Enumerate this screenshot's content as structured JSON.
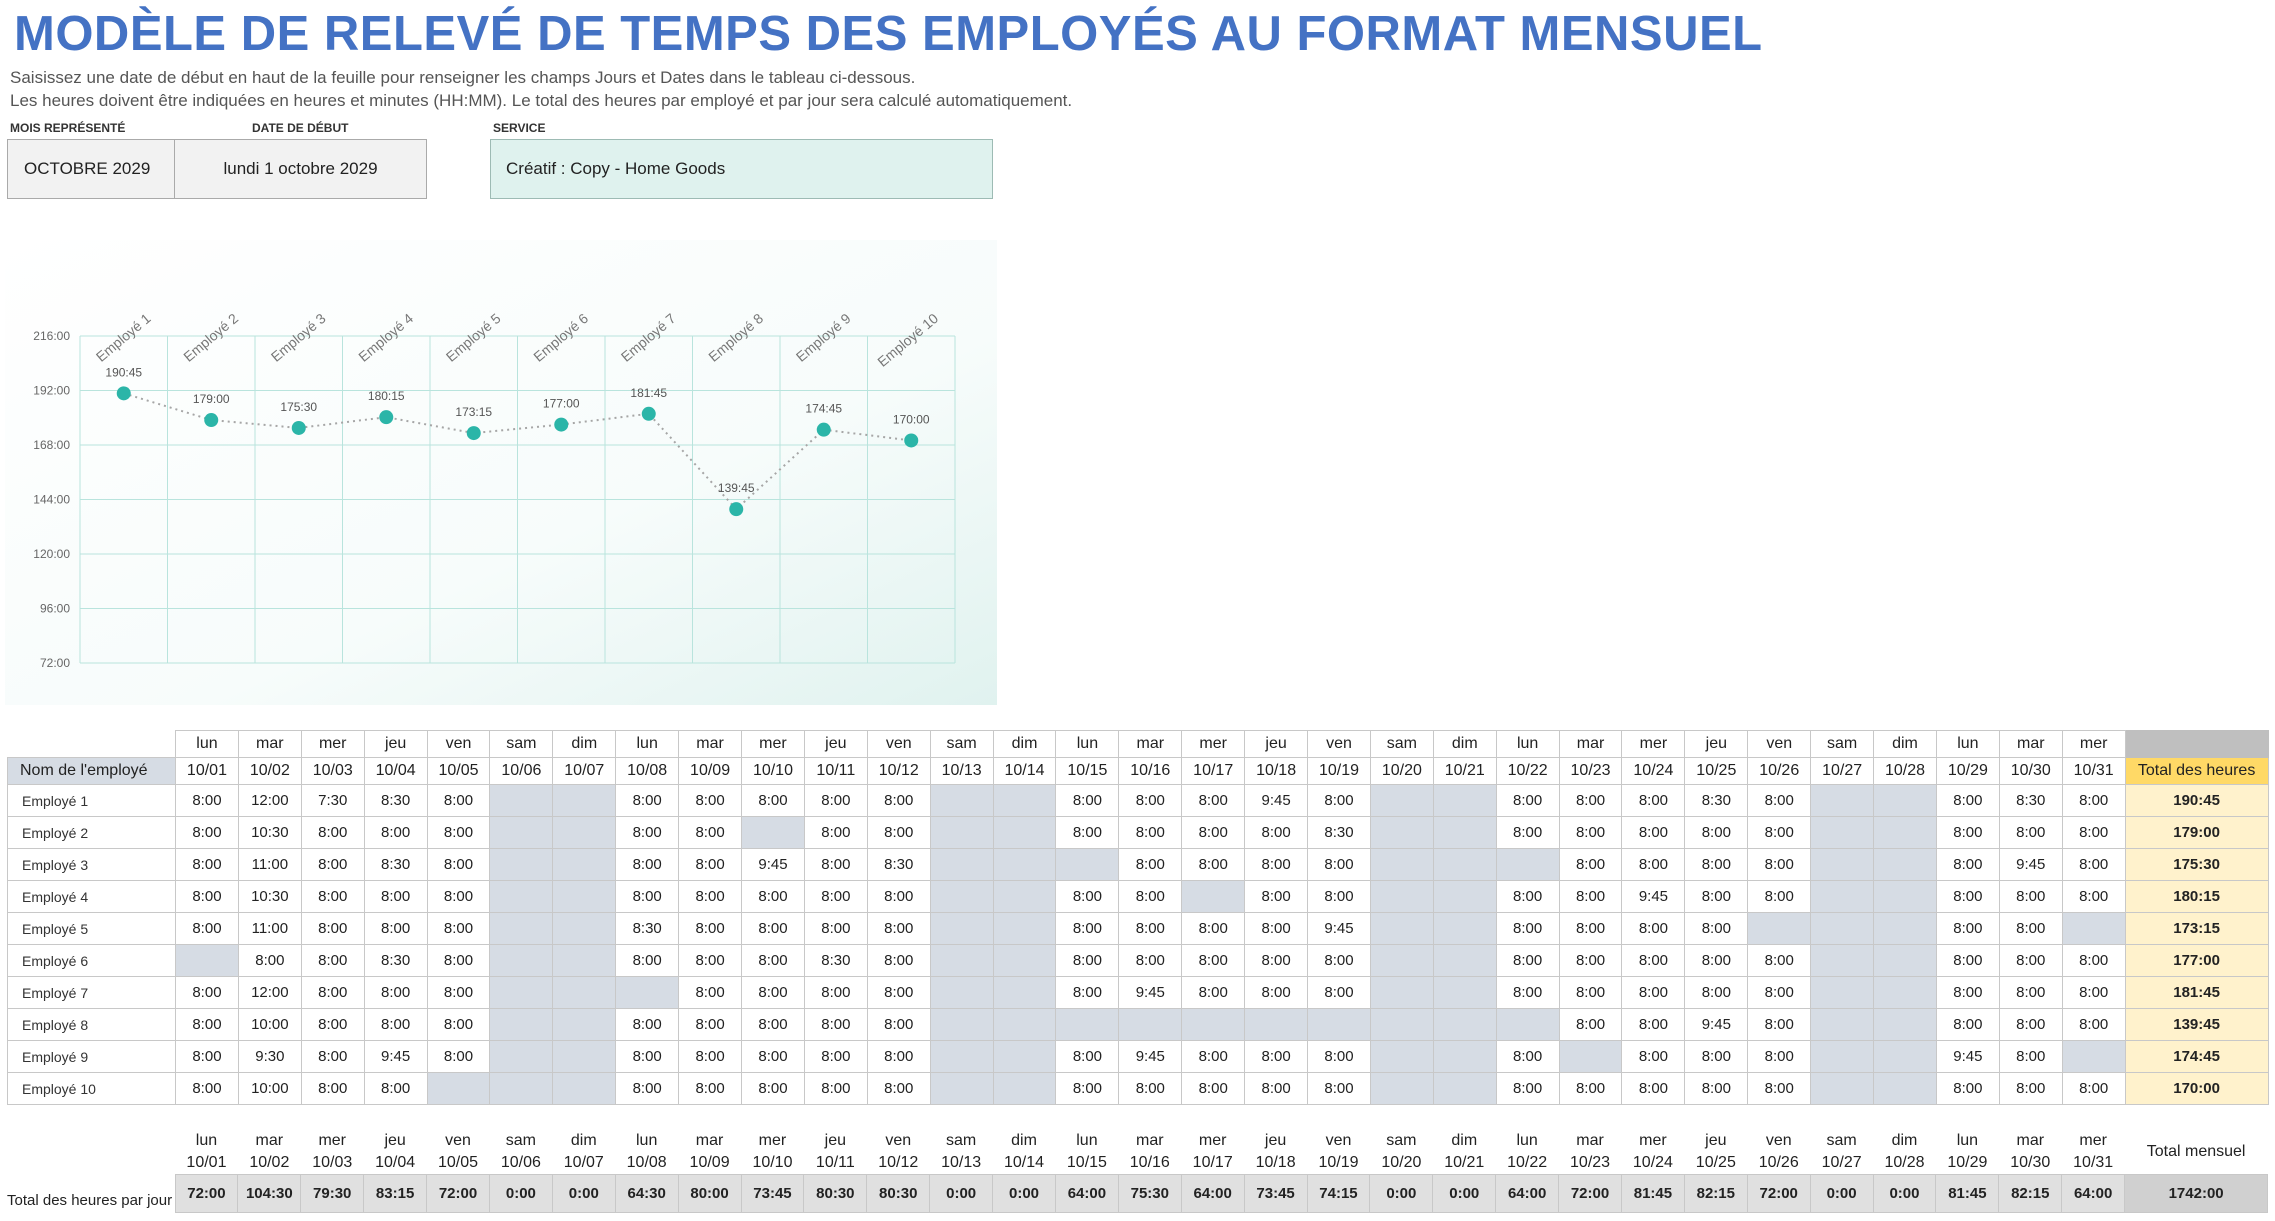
{
  "title": "MODÈLE DE RELEVÉ DE TEMPS DES EMPLOYÉS AU FORMAT MENSUEL",
  "instructions": [
    "Saisissez une date de début en haut de la feuille pour renseigner les champs Jours et Dates dans le tableau ci-dessous.",
    "Les heures doivent être indiquées en heures et minutes (HH:MM).  Le total des heures par employé et par jour sera calculé automatiquement."
  ],
  "fields": {
    "month_label": "MOIS REPRÉSENTÉ",
    "month_value": "OCTOBRE 2029",
    "start_label": "DATE DE DÉBUT",
    "start_value": "lundi 1 octobre 2029",
    "service_label": "SERVICE",
    "service_value": "Créatif : Copy - Home Goods"
  },
  "colors": {
    "accent": "#4472c4",
    "marker": "#2bb5a8",
    "weekend": "#d6dce4",
    "total": "#fff2cc",
    "total_header": "#ffd966",
    "service_box": "#dff2ee"
  },
  "chart_data": {
    "type": "line",
    "categories": [
      "Employé 1",
      "Employé 2",
      "Employé 3",
      "Employé 4",
      "Employé 5",
      "Employé 6",
      "Employé 7",
      "Employé 8",
      "Employé 9",
      "Employé 10"
    ],
    "values": [
      190.75,
      179.0,
      175.5,
      180.25,
      173.25,
      177.0,
      181.75,
      139.75,
      174.75,
      170.0
    ],
    "data_labels": [
      "190:45",
      "179:00",
      "175:30",
      "180:15",
      "173:15",
      "177:00",
      "181:45",
      "139:45",
      "174:45",
      "170:00"
    ],
    "y_ticks": [
      "216:00",
      "192:00",
      "168:00",
      "144:00",
      "120:00",
      "96:00",
      "72:00"
    ],
    "ylim": [
      72,
      216
    ],
    "grid": true,
    "x_labels_position": "top"
  },
  "table": {
    "name_header": "Nom de l'employé",
    "total_header": "Total des heures",
    "days": [
      "lun",
      "mar",
      "mer",
      "jeu",
      "ven",
      "sam",
      "dim",
      "lun",
      "mar",
      "mer",
      "jeu",
      "ven",
      "sam",
      "dim",
      "lun",
      "mar",
      "mer",
      "jeu",
      "ven",
      "sam",
      "dim",
      "lun",
      "mar",
      "mer",
      "jeu",
      "ven",
      "sam",
      "dim",
      "lun",
      "mar",
      "mer"
    ],
    "dates": [
      "10/01",
      "10/02",
      "10/03",
      "10/04",
      "10/05",
      "10/06",
      "10/07",
      "10/08",
      "10/09",
      "10/10",
      "10/11",
      "10/12",
      "10/13",
      "10/14",
      "10/15",
      "10/16",
      "10/17",
      "10/18",
      "10/19",
      "10/20",
      "10/21",
      "10/22",
      "10/23",
      "10/24",
      "10/25",
      "10/26",
      "10/27",
      "10/28",
      "10/29",
      "10/30",
      "10/31"
    ],
    "rows": [
      {
        "name": "Employé 1",
        "hours": [
          "8:00",
          "12:00",
          "7:30",
          "8:30",
          "8:00",
          "",
          "",
          "8:00",
          "8:00",
          "8:00",
          "8:00",
          "8:00",
          "",
          "",
          "8:00",
          "8:00",
          "8:00",
          "9:45",
          "8:00",
          "",
          "",
          "8:00",
          "8:00",
          "8:00",
          "8:30",
          "8:00",
          "",
          "",
          "8:00",
          "8:30",
          "8:00"
        ],
        "total": "190:45"
      },
      {
        "name": "Employé 2",
        "hours": [
          "8:00",
          "10:30",
          "8:00",
          "8:00",
          "8:00",
          "",
          "",
          "8:00",
          "8:00",
          "",
          "8:00",
          "8:00",
          "",
          "",
          "8:00",
          "8:00",
          "8:00",
          "8:00",
          "8:30",
          "",
          "",
          "8:00",
          "8:00",
          "8:00",
          "8:00",
          "8:00",
          "",
          "",
          "8:00",
          "8:00",
          "8:00"
        ],
        "total": "179:00"
      },
      {
        "name": "Employé 3",
        "hours": [
          "8:00",
          "11:00",
          "8:00",
          "8:30",
          "8:00",
          "",
          "",
          "8:00",
          "8:00",
          "9:45",
          "8:00",
          "8:30",
          "",
          "",
          "",
          "8:00",
          "8:00",
          "8:00",
          "8:00",
          "",
          "",
          "",
          "8:00",
          "8:00",
          "8:00",
          "8:00",
          "",
          "",
          "8:00",
          "9:45",
          "8:00"
        ],
        "total": "175:30"
      },
      {
        "name": "Employé 4",
        "hours": [
          "8:00",
          "10:30",
          "8:00",
          "8:00",
          "8:00",
          "",
          "",
          "8:00",
          "8:00",
          "8:00",
          "8:00",
          "8:00",
          "",
          "",
          "8:00",
          "8:00",
          "",
          "8:00",
          "8:00",
          "",
          "",
          "8:00",
          "8:00",
          "9:45",
          "8:00",
          "8:00",
          "",
          "",
          "8:00",
          "8:00",
          "8:00"
        ],
        "total": "180:15"
      },
      {
        "name": "Employé 5",
        "hours": [
          "8:00",
          "11:00",
          "8:00",
          "8:00",
          "8:00",
          "",
          "",
          "8:30",
          "8:00",
          "8:00",
          "8:00",
          "8:00",
          "",
          "",
          "8:00",
          "8:00",
          "8:00",
          "8:00",
          "9:45",
          "",
          "",
          "8:00",
          "8:00",
          "8:00",
          "8:00",
          "",
          "",
          "",
          "8:00",
          "8:00",
          ""
        ],
        "total": "173:15"
      },
      {
        "name": "Employé 6",
        "hours": [
          "",
          "8:00",
          "8:00",
          "8:30",
          "8:00",
          "",
          "",
          "8:00",
          "8:00",
          "8:00",
          "8:30",
          "8:00",
          "",
          "",
          "8:00",
          "8:00",
          "8:00",
          "8:00",
          "8:00",
          "",
          "",
          "8:00",
          "8:00",
          "8:00",
          "8:00",
          "8:00",
          "",
          "",
          "8:00",
          "8:00",
          "8:00"
        ],
        "total": "177:00"
      },
      {
        "name": "Employé 7",
        "hours": [
          "8:00",
          "12:00",
          "8:00",
          "8:00",
          "8:00",
          "",
          "",
          "",
          "8:00",
          "8:00",
          "8:00",
          "8:00",
          "",
          "",
          "8:00",
          "9:45",
          "8:00",
          "8:00",
          "8:00",
          "",
          "",
          "8:00",
          "8:00",
          "8:00",
          "8:00",
          "8:00",
          "",
          "",
          "8:00",
          "8:00",
          "8:00"
        ],
        "total": "181:45"
      },
      {
        "name": "Employé 8",
        "hours": [
          "8:00",
          "10:00",
          "8:00",
          "8:00",
          "8:00",
          "",
          "",
          "8:00",
          "8:00",
          "8:00",
          "8:00",
          "8:00",
          "",
          "",
          "",
          "",
          "",
          "",
          "",
          "",
          "",
          "",
          "8:00",
          "8:00",
          "9:45",
          "8:00",
          "",
          "",
          "8:00",
          "8:00",
          "8:00"
        ],
        "total": "139:45"
      },
      {
        "name": "Employé 9",
        "hours": [
          "8:00",
          "9:30",
          "8:00",
          "9:45",
          "8:00",
          "",
          "",
          "8:00",
          "8:00",
          "8:00",
          "8:00",
          "8:00",
          "",
          "",
          "8:00",
          "9:45",
          "8:00",
          "8:00",
          "8:00",
          "",
          "",
          "8:00",
          "",
          "8:00",
          "8:00",
          "8:00",
          "",
          "",
          "9:45",
          "8:00",
          ""
        ],
        "total": "174:45"
      },
      {
        "name": "Employé 10",
        "hours": [
          "8:00",
          "10:00",
          "8:00",
          "8:00",
          "",
          "",
          "",
          "8:00",
          "8:00",
          "8:00",
          "8:00",
          "8:00",
          "",
          "",
          "8:00",
          "8:00",
          "8:00",
          "8:00",
          "8:00",
          "",
          "",
          "8:00",
          "8:00",
          "8:00",
          "8:00",
          "8:00",
          "",
          "",
          "8:00",
          "8:00",
          "8:00"
        ],
        "total": "170:00"
      }
    ]
  },
  "daily": {
    "label": "Total des heures par jour",
    "grand_label": "Total mensuel",
    "totals": [
      "72:00",
      "104:30",
      "79:30",
      "83:15",
      "72:00",
      "0:00",
      "0:00",
      "64:30",
      "80:00",
      "73:45",
      "80:30",
      "80:30",
      "0:00",
      "0:00",
      "64:00",
      "75:30",
      "64:00",
      "73:45",
      "74:15",
      "0:00",
      "0:00",
      "64:00",
      "72:00",
      "81:45",
      "82:15",
      "72:00",
      "0:00",
      "0:00",
      "81:45",
      "82:15",
      "64:00"
    ],
    "grand_total": "1742:00"
  }
}
